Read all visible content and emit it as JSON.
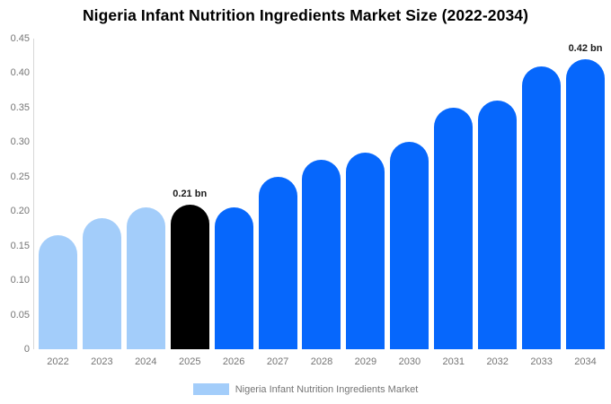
{
  "title": "Nigeria Infant Nutrition Ingredients Market Size (2022-2034)",
  "legend": {
    "label": "Nigeria Infant Nutrition Ingredients Market"
  },
  "colors": {
    "historical_bar": "#a3cdfa",
    "base_year_bar": "#000000",
    "forecast_bar": "#0667fc",
    "axis_line": "#d8d8d8",
    "tick_text": "#757575",
    "annotation_text": "#1b1b1b",
    "title_text": "#000000"
  },
  "y_axis": {
    "tick_labels": [
      "0.45",
      "0.40",
      "0.35",
      "0.30",
      "0.25",
      "0.20",
      "0.15",
      "0.10",
      "0.05",
      "0"
    ]
  },
  "chart_data": {
    "type": "bar",
    "title": "Nigeria Infant Nutrition Ingredients Market Size (2022-2034)",
    "series_name": "Nigeria Infant Nutrition Ingredients Market",
    "categories": [
      "2022",
      "2023",
      "2024",
      "2025",
      "2026",
      "2027",
      "2028",
      "2029",
      "2030",
      "2031",
      "2032",
      "2033",
      "2034"
    ],
    "values": [
      0.165,
      0.19,
      0.205,
      0.21,
      0.205,
      0.25,
      0.275,
      0.285,
      0.3,
      0.35,
      0.36,
      0.41,
      0.42
    ],
    "unit": "bn",
    "bar_roles": [
      "historical",
      "historical",
      "historical",
      "base_year",
      "forecast",
      "forecast",
      "forecast",
      "forecast",
      "forecast",
      "forecast",
      "forecast",
      "forecast",
      "forecast"
    ],
    "annotations": [
      {
        "category": "2025",
        "text": "0.21 bn"
      },
      {
        "category": "2034",
        "text": "0.42 bn"
      }
    ],
    "xlabel": "",
    "ylabel": "",
    "ylim": [
      0,
      0.45
    ],
    "y_tick_step": 0.05,
    "grid": false,
    "legend_position": "bottom"
  }
}
